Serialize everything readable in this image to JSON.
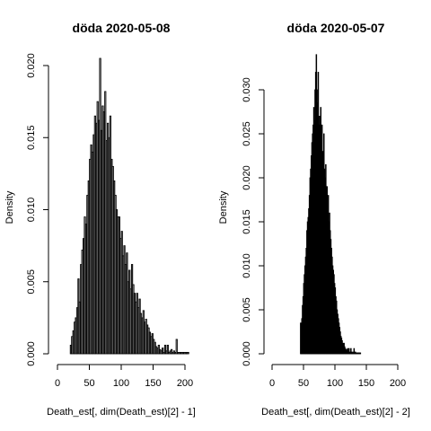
{
  "chart_data": [
    {
      "type": "bar",
      "subtype": "histogram",
      "title": "döda 2020-05-08",
      "xlabel": "Death_est[, dim(Death_est)[2] - 1]",
      "ylabel": "Density",
      "xlim": [
        0,
        200
      ],
      "ylim": [
        0,
        0.02
      ],
      "x_ticks": [
        "0",
        "50",
        "100",
        "150",
        "200"
      ],
      "y_ticks": [
        "0.000",
        "0.005",
        "0.010",
        "0.015",
        "0.020"
      ],
      "bin_width": 2,
      "bin_start": 20,
      "fill_colors": [
        "#555555",
        "#999999"
      ],
      "values": [
        0.0006,
        0.0012,
        0.0016,
        0.0022,
        0.0025,
        0.0032,
        0.0052,
        0.0036,
        0.0062,
        0.0072,
        0.008,
        0.0095,
        0.009,
        0.011,
        0.012,
        0.0135,
        0.0145,
        0.014,
        0.0152,
        0.0165,
        0.016,
        0.0175,
        0.0162,
        0.0205,
        0.0155,
        0.0172,
        0.0168,
        0.0182,
        0.0148,
        0.016,
        0.015,
        0.0165,
        0.0135,
        0.013,
        0.012,
        0.011,
        0.01,
        0.0095,
        0.0095,
        0.008,
        0.0085,
        0.0068,
        0.0075,
        0.0062,
        0.007,
        0.005,
        0.0058,
        0.0045,
        0.0062,
        0.0048,
        0.0042,
        0.0036,
        0.0042,
        0.0032,
        0.0038,
        0.0028,
        0.0025,
        0.003,
        0.0022,
        0.0024,
        0.002,
        0.0018,
        0.0015,
        0.0012,
        0.0014,
        0.001,
        0.0008,
        0.0005,
        0.0004,
        0.0006,
        0.0003,
        0.0002,
        0.0004,
        0.0001,
        0.0006,
        0.0002,
        0.0006,
        0.0001,
        0.0002,
        0.0003,
        0.0001,
        0.0002,
        0.0001,
        0.001,
        0.0001,
        0.0001,
        0.0001,
        0.0001,
        0.0001,
        0.0001,
        0.0001,
        0.0001,
        0.0001
      ]
    },
    {
      "type": "bar",
      "subtype": "histogram",
      "title": "döda 2020-05-07",
      "xlabel": "Death_est[, dim(Death_est)[2] - 2]",
      "ylabel": "Density",
      "xlim": [
        0,
        200
      ],
      "ylim": [
        0,
        0.033
      ],
      "x_ticks": [
        "0",
        "50",
        "100",
        "150",
        "200"
      ],
      "y_ticks": [
        "0.000",
        "0.005",
        "0.010",
        "0.015",
        "0.020",
        "0.025",
        "0.030"
      ],
      "bin_width": 1,
      "bin_start": 45,
      "fill_colors": [
        "#111111",
        "#555555"
      ],
      "values": [
        0.0035,
        0.0025,
        0.004,
        0.0055,
        0.0065,
        0.008,
        0.009,
        0.01,
        0.011,
        0.012,
        0.014,
        0.015,
        0.0155,
        0.0165,
        0.018,
        0.02,
        0.021,
        0.0225,
        0.024,
        0.025,
        0.026,
        0.028,
        0.0265,
        0.03,
        0.032,
        0.034,
        0.03,
        0.0285,
        0.032,
        0.026,
        0.027,
        0.025,
        0.028,
        0.024,
        0.026,
        0.023,
        0.022,
        0.025,
        0.021,
        0.02,
        0.0215,
        0.018,
        0.019,
        0.017,
        0.018,
        0.015,
        0.016,
        0.014,
        0.013,
        0.012,
        0.011,
        0.01,
        0.0095,
        0.009,
        0.008,
        0.0075,
        0.0065,
        0.006,
        0.005,
        0.0045,
        0.004,
        0.0035,
        0.003,
        0.0025,
        0.002,
        0.0018,
        0.0015,
        0.0012,
        0.001,
        0.0012,
        0.0008,
        0.0006,
        0.0004,
        0.0005,
        0.0003,
        0.0006,
        0.0002,
        0.0006,
        0.0001,
        0.0002,
        0.0006,
        0.0002,
        0.0001,
        0.0002,
        0.0001,
        0.0006,
        0.0001,
        0.0002,
        0.0001,
        0.0001,
        0.0001,
        0.0001,
        0.0001,
        0.0001,
        0.0001,
        0.0001
      ]
    }
  ]
}
